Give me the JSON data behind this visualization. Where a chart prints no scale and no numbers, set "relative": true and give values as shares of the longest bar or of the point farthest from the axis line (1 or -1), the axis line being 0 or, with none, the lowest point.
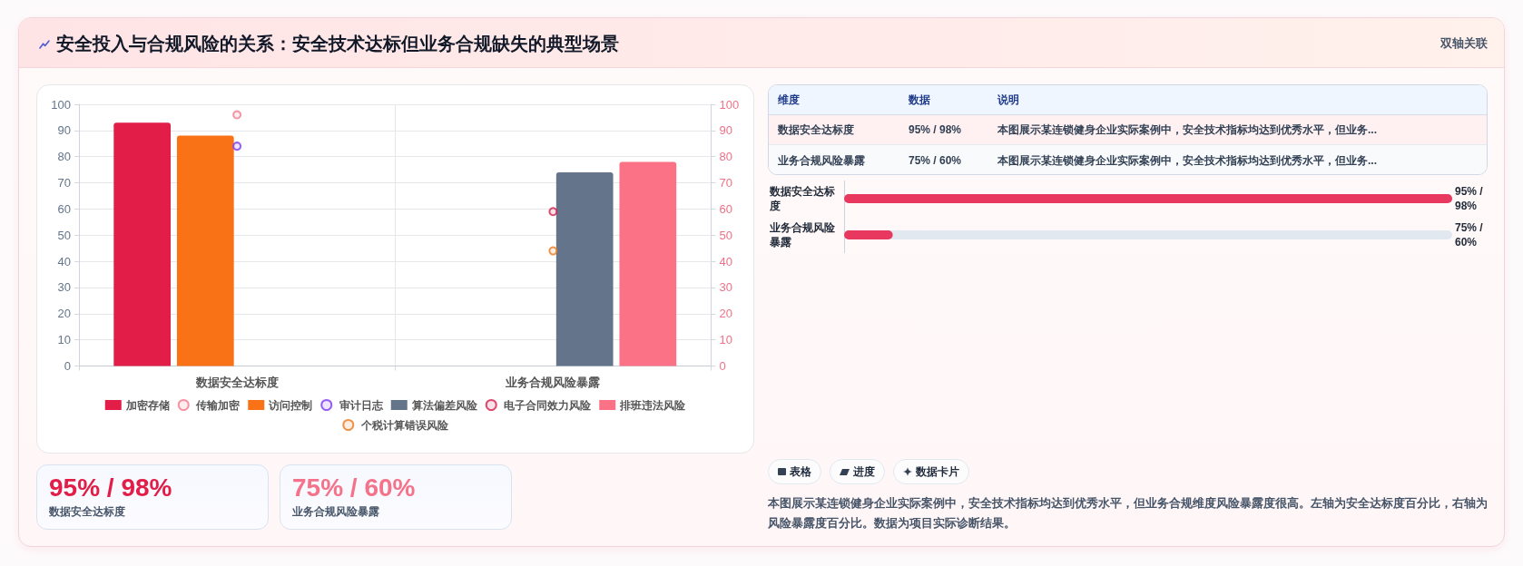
{
  "chart_data": [
    {
      "type": "bar",
      "title": "安全投入与合规风险的关系：安全技术达标但业务合规缺失的典型场景",
      "categories": [
        "数据安全达标度",
        "业务合规风险暴露"
      ],
      "series": [
        {
          "name": "加密存储",
          "type": "bar",
          "color": "#e11d48",
          "values": [
            93,
            null
          ]
        },
        {
          "name": "传输加密",
          "type": "scatter",
          "color": "#f47a8d",
          "values": [
            96,
            null
          ]
        },
        {
          "name": "访问控制",
          "type": "bar",
          "color": "#f97316",
          "values": [
            88,
            null
          ]
        },
        {
          "name": "审计日志",
          "type": "scatter",
          "color": "#7c3aed",
          "values": [
            84,
            null
          ]
        },
        {
          "name": "算法偏差风险",
          "type": "bar",
          "color": "#64748b",
          "values": [
            null,
            74
          ]
        },
        {
          "name": "电子合同效力风险",
          "type": "scatter",
          "color": "#d61f4d",
          "values": [
            null,
            59
          ]
        },
        {
          "name": "排班违法风险",
          "type": "bar",
          "color": "#fb7185",
          "values": [
            null,
            78
          ]
        },
        {
          "name": "个税计算错误风险",
          "type": "scatter",
          "color": "#ea7a1e",
          "values": [
            null,
            44
          ]
        }
      ],
      "ylim": [
        0,
        100
      ],
      "yticks": [
        0,
        10,
        20,
        30,
        40,
        50,
        60,
        70,
        80,
        90,
        100
      ],
      "y2lim": [
        0,
        100
      ],
      "y2ticks": [
        0,
        10,
        20,
        30,
        40,
        50,
        60,
        70,
        80,
        90,
        100
      ],
      "grid": true,
      "legend": "bottom",
      "marker": "circle",
      "annotations": [
        "双轴关联",
        "表格",
        "进度",
        "数据卡片",
        "本图展示某连锁健身企业实际案例中，安全技术指标均达到优秀水平，但业务合规维度风险暴露度很高。左轴为安全达标度百分比，右轴为风险暴露度百分比。数据为项目实际诊断结果。"
      ]
    },
    {
      "type": "other",
      "categories": [
        "维度",
        "数据",
        "说明"
      ],
      "annotations": [
        "数据安全达标度",
        "95% / 98%",
        "本图展示某连锁健身企业实际案例中，安全技术指标均达到优秀水平，但业务...",
        "业务合规风险暴露",
        "75% / 60%",
        "本图展示某连锁健身企业实际案例中，安全技术指标均达到优秀水平，但业务..."
      ]
    },
    {
      "type": "bar",
      "orientation": "horizontal",
      "relative": true,
      "categories": [
        "数据安全达标度",
        "业务合规风险暴露"
      ],
      "values": [
        1,
        0.08
      ],
      "color": "#e9385f",
      "annotations": [
        "95% / 98%",
        "75% / 60%"
      ]
    },
    {
      "type": "other",
      "annotations": [
        "95% / 98%",
        "数据安全达标度",
        "75% / 60%",
        "业务合规风险暴露"
      ]
    }
  ]
}
